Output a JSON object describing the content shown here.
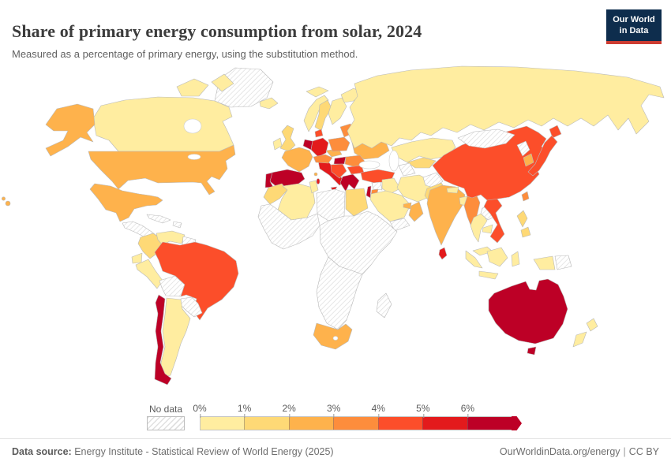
{
  "header": {
    "title": "Share of primary energy consumption from solar, 2024",
    "subtitle": "Measured as a percentage of primary energy, using the substitution method.",
    "logo": {
      "line1": "Our World",
      "line2": "in Data",
      "bg_color": "#0e2d4d",
      "accent_color": "#cd3c32"
    }
  },
  "legend": {
    "no_data_label": "No data",
    "tick_labels": [
      "0%",
      "1%",
      "2%",
      "3%",
      "4%",
      "5%",
      "6%"
    ],
    "bin_colors": [
      "#FFEDA0",
      "#FED976",
      "#FEB24C",
      "#FD8D3C",
      "#FC4E2A",
      "#E31A1C",
      "#BD0026"
    ]
  },
  "footer": {
    "data_source_label": "Data source:",
    "data_source_text": " Energy Institute - Statistical Review of World Energy (2025)",
    "site_link": "OurWorldinData.org/energy",
    "separator": "|",
    "license": "CC BY"
  },
  "chart_data": {
    "type": "choropleth_map",
    "title": "Share of primary energy consumption from solar, 2024",
    "unit": "% of primary energy (substitution method)",
    "bin_thresholds": [
      0,
      1,
      2,
      3,
      4,
      5,
      6
    ],
    "bin_colors": [
      "#FFEDA0",
      "#FED976",
      "#FEB24C",
      "#FD8D3C",
      "#FC4E2A",
      "#E31A1C",
      "#BD0026"
    ],
    "no_data_style": "gray diagonal hatching",
    "countries": {
      "canada": {
        "name": "Canada",
        "value": 0.6
      },
      "usa": {
        "name": "United States",
        "value": 2.9
      },
      "mexico": {
        "name": "Mexico",
        "value": 2.5
      },
      "greenland": {
        "name": "Greenland",
        "value": null
      },
      "central_america": {
        "name": "Central America",
        "value": null
      },
      "cuba": {
        "name": "Cuba",
        "value": null
      },
      "hispaniola": {
        "name": "Hispaniola",
        "value": null
      },
      "colombia": {
        "name": "Colombia",
        "value": 1.5
      },
      "venezuela": {
        "name": "Venezuela",
        "value": 0.4
      },
      "guyanas": {
        "name": "Guyana/Suriname",
        "value": null
      },
      "ecuador": {
        "name": "Ecuador",
        "value": 0.4
      },
      "peru": {
        "name": "Peru",
        "value": 0.6
      },
      "bolivia": {
        "name": "Bolivia",
        "value": null
      },
      "brazil": {
        "name": "Brazil",
        "value": 4.6
      },
      "paraguay_uruguay": {
        "name": "Paraguay/Uruguay",
        "value": null
      },
      "argentina": {
        "name": "Argentina",
        "value": 0.9
      },
      "chile": {
        "name": "Chile",
        "value": 9.2
      },
      "iceland": {
        "name": "Iceland",
        "value": 0.1
      },
      "ireland": {
        "name": "Ireland",
        "value": 0.9
      },
      "uk": {
        "name": "United Kingdom",
        "value": 1.7
      },
      "norway": {
        "name": "Norway",
        "value": 0.3
      },
      "sweden": {
        "name": "Sweden",
        "value": 1.4
      },
      "finland": {
        "name": "Finland",
        "value": 0.7
      },
      "denmark": {
        "name": "Denmark",
        "value": 4.5
      },
      "benelux": {
        "name": "Netherlands/Belgium",
        "value": 6.5
      },
      "germany": {
        "name": "Germany",
        "value": 5.3
      },
      "france": {
        "name": "France",
        "value": 2.3
      },
      "spain": {
        "name": "Spain",
        "value": 8.4
      },
      "portugal": {
        "name": "Portugal",
        "value": 6.2
      },
      "italy": {
        "name": "Italy",
        "value": 5.1
      },
      "switzerland_austria": {
        "name": "Switzerland/Austria",
        "value": 3.4
      },
      "czechia_slovakia": {
        "name": "Czechia/Slovakia",
        "value": 2.6
      },
      "poland": {
        "name": "Poland",
        "value": 3.8
      },
      "baltics": {
        "name": "Baltic states",
        "value": 3.6
      },
      "belarus": {
        "name": "Belarus",
        "value": 1.5
      },
      "ukraine": {
        "name": "Ukraine",
        "value": 2.8
      },
      "hungary": {
        "name": "Hungary",
        "value": 7.1
      },
      "romania": {
        "name": "Romania",
        "value": 3.4
      },
      "balkans": {
        "name": "Western Balkans",
        "value": 4.3
      },
      "bulgaria": {
        "name": "Bulgaria",
        "value": 4.4
      },
      "greece": {
        "name": "Greece",
        "value": 7.6
      },
      "turkey": {
        "name": "Turkey",
        "value": 4.3
      },
      "russia": {
        "name": "Russia",
        "value": 0.1
      },
      "kazakhstan": {
        "name": "Kazakhstan",
        "value": 0.4
      },
      "uzbekistan": {
        "name": "Uzbekistan/Kyrgyzstan",
        "value": 1.6
      },
      "turkmenistan": {
        "name": "Turkmenistan",
        "value": null
      },
      "syria": {
        "name": "Syria",
        "value": null
      },
      "israel": {
        "name": "Israel",
        "value": 6.8
      },
      "jordan": {
        "name": "Jordan",
        "value": 3.9
      },
      "iraq": {
        "name": "Iraq",
        "value": 0.3
      },
      "iran": {
        "name": "Iran",
        "value": 0.4
      },
      "afghanistan": {
        "name": "Afghanistan",
        "value": null
      },
      "pakistan": {
        "name": "Pakistan",
        "value": 1.4
      },
      "saudi_arabia": {
        "name": "Saudi Arabia",
        "value": 0.8
      },
      "yemen": {
        "name": "Yemen",
        "value": null
      },
      "oman": {
        "name": "Oman",
        "value": 2.7
      },
      "uae": {
        "name": "United Arab Emirates",
        "value": 2.8
      },
      "india": {
        "name": "India",
        "value": 2.6
      },
      "nepal": {
        "name": "Nepal/Bhutan",
        "value": 0.5
      },
      "bangladesh": {
        "name": "Bangladesh",
        "value": 0.6
      },
      "sri_lanka": {
        "name": "Sri Lanka",
        "value": 5.4
      },
      "myanmar": {
        "name": "Myanmar",
        "value": 3.2
      },
      "thailand": {
        "name": "Thailand",
        "value": 0.9
      },
      "laos": {
        "name": "Laos",
        "value": null
      },
      "cambodia": {
        "name": "Cambodia",
        "value": 0.7
      },
      "vietnam": {
        "name": "Vietnam",
        "value": 4.4
      },
      "china": {
        "name": "China",
        "value": 4.7
      },
      "mongolia": {
        "name": "Mongolia",
        "value": null
      },
      "north_korea": {
        "name": "North Korea",
        "value": null
      },
      "south_korea": {
        "name": "South Korea",
        "value": 2.9
      },
      "japan": {
        "name": "Japan",
        "value": 4.8
      },
      "taiwan": {
        "name": "Taiwan",
        "value": 3.1
      },
      "philippines": {
        "name": "Philippines",
        "value": 1.6
      },
      "malaysia": {
        "name": "Malaysia",
        "value": 0.9
      },
      "indonesia": {
        "name": "Indonesia",
        "value": 0.3
      },
      "papua_new_guinea": {
        "name": "Papua New Guinea",
        "value": null
      },
      "australia": {
        "name": "Australia",
        "value": 9.0
      },
      "new_zealand": {
        "name": "New Zealand",
        "value": 0.7
      },
      "morocco": {
        "name": "Morocco",
        "value": 1.8
      },
      "algeria": {
        "name": "Algeria",
        "value": 0.3
      },
      "tunisia": {
        "name": "Tunisia",
        "value": 0.6
      },
      "libya": {
        "name": "Libya",
        "value": null
      },
      "egypt": {
        "name": "Egypt",
        "value": 1.3
      },
      "west_africa": {
        "name": "West Africa",
        "value": null
      },
      "east_africa": {
        "name": "North-East Africa",
        "value": null
      },
      "central_south_africa": {
        "name": "Central & Southern Africa",
        "value": null
      },
      "south_africa": {
        "name": "South Africa",
        "value": 2.4
      },
      "madagascar": {
        "name": "Madagascar",
        "value": null
      }
    }
  }
}
